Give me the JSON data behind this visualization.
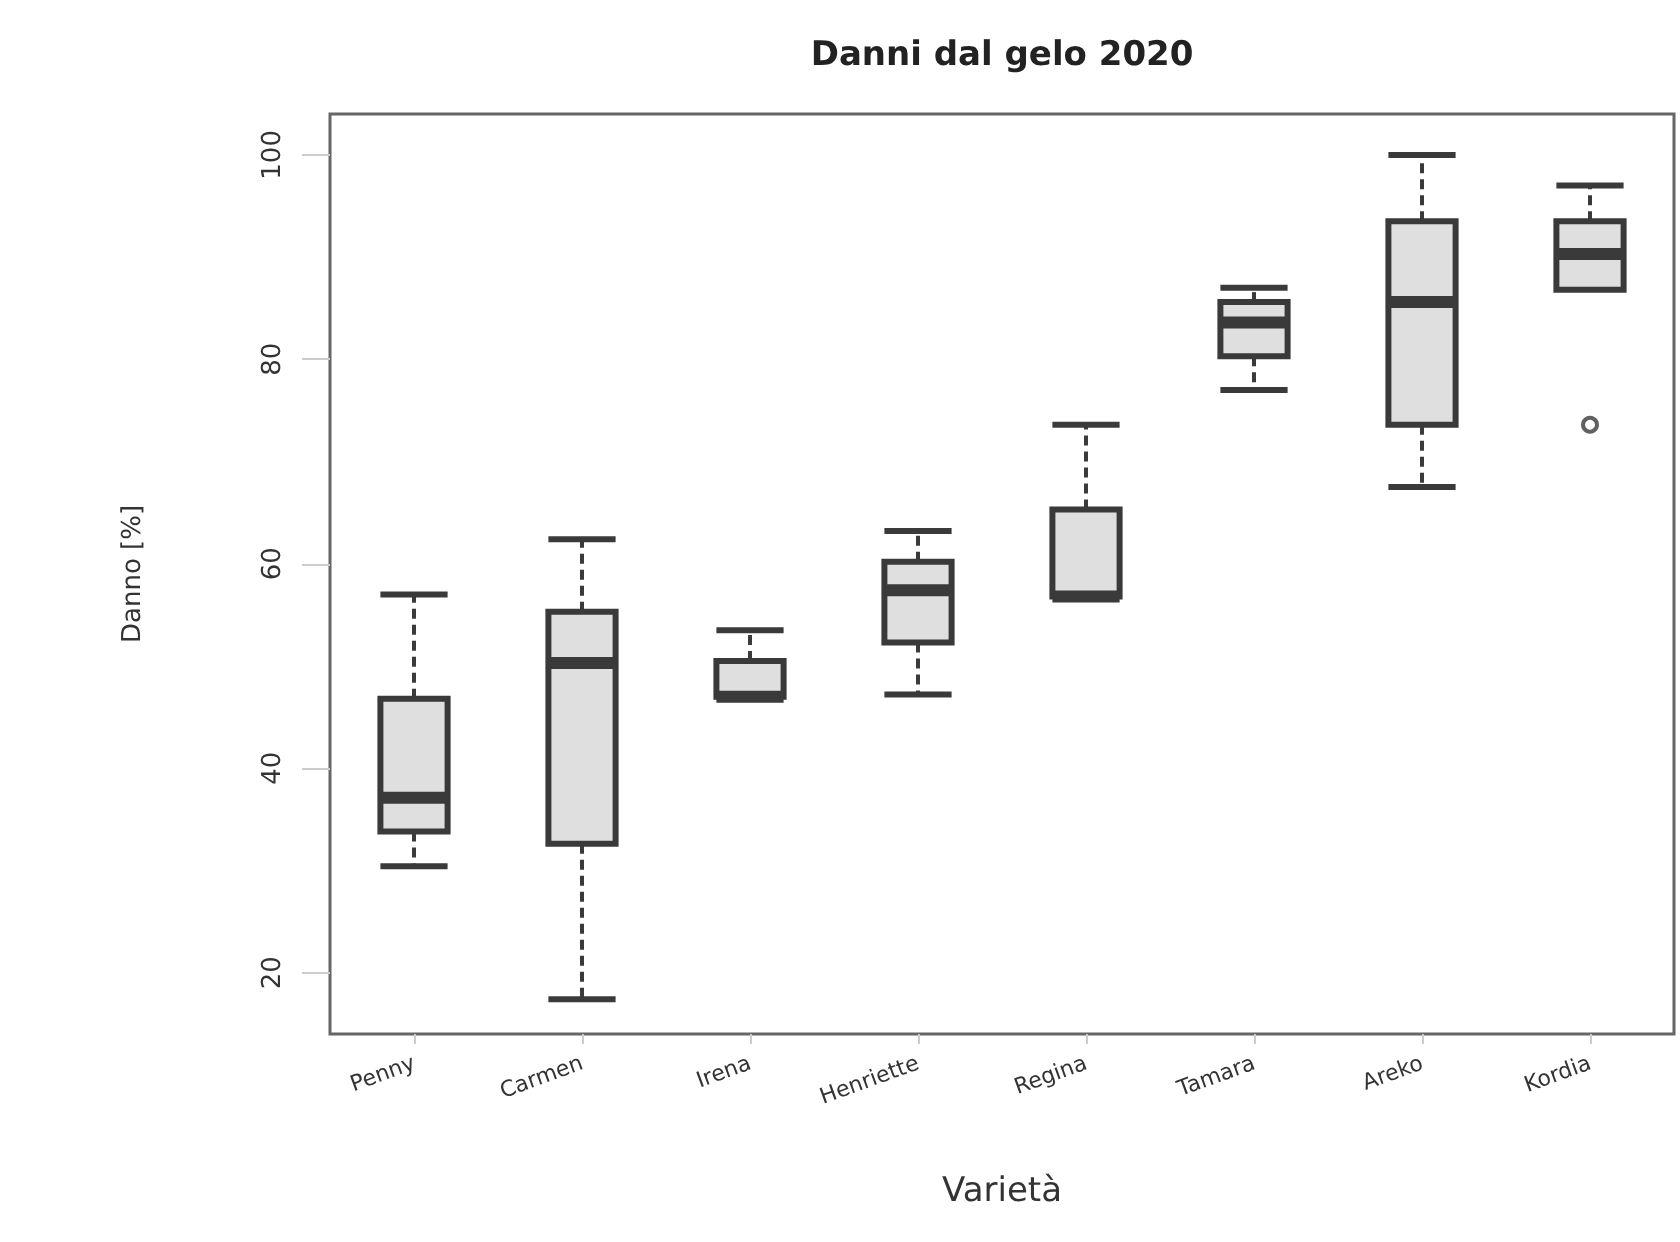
{
  "chart_data": {
    "type": "box",
    "title": "Danni dal gelo 2020",
    "xlabel": "Varietà",
    "ylabel": "Danno [%]",
    "categories": [
      "Penny",
      "Carmen",
      "Irena",
      "Henriette",
      "Regina",
      "Tamara",
      "Areko",
      "Kordia"
    ],
    "boxes": [
      {
        "low": 30.4,
        "q1": 33.8,
        "median": 37.1,
        "q3": 46.8,
        "high": 57
      },
      {
        "low": 17.4,
        "q1": 32.6,
        "median": 50.3,
        "q3": 55.3,
        "high": 62.4
      },
      {
        "low": 47,
        "q1": 47,
        "median": 47,
        "q3": 50.5,
        "high": 53.5
      },
      {
        "low": 47.2,
        "q1": 52.3,
        "median": 57.4,
        "q3": 60.2,
        "high": 63.2
      },
      {
        "low": 56.8,
        "q1": 56.8,
        "median": 56.8,
        "q3": 65.3,
        "high": 73.6
      },
      {
        "low": 77,
        "q1": 80.3,
        "median": 83.6,
        "q3": 85.6,
        "high": 87
      },
      {
        "low": 67.5,
        "q1": 73.6,
        "median": 85.6,
        "q3": 93.5,
        "high": 100
      },
      {
        "low": 86.8,
        "q1": 86.8,
        "median": 90.3,
        "q3": 93.5,
        "high": 97,
        "outliers": [
          73.6
        ]
      }
    ],
    "color": "#e0dfe0",
    "ylim": [
      14,
      104
    ],
    "yticks": [
      20,
      40,
      60,
      80,
      100
    ],
    "grid": false,
    "line_style": "dashed"
  }
}
